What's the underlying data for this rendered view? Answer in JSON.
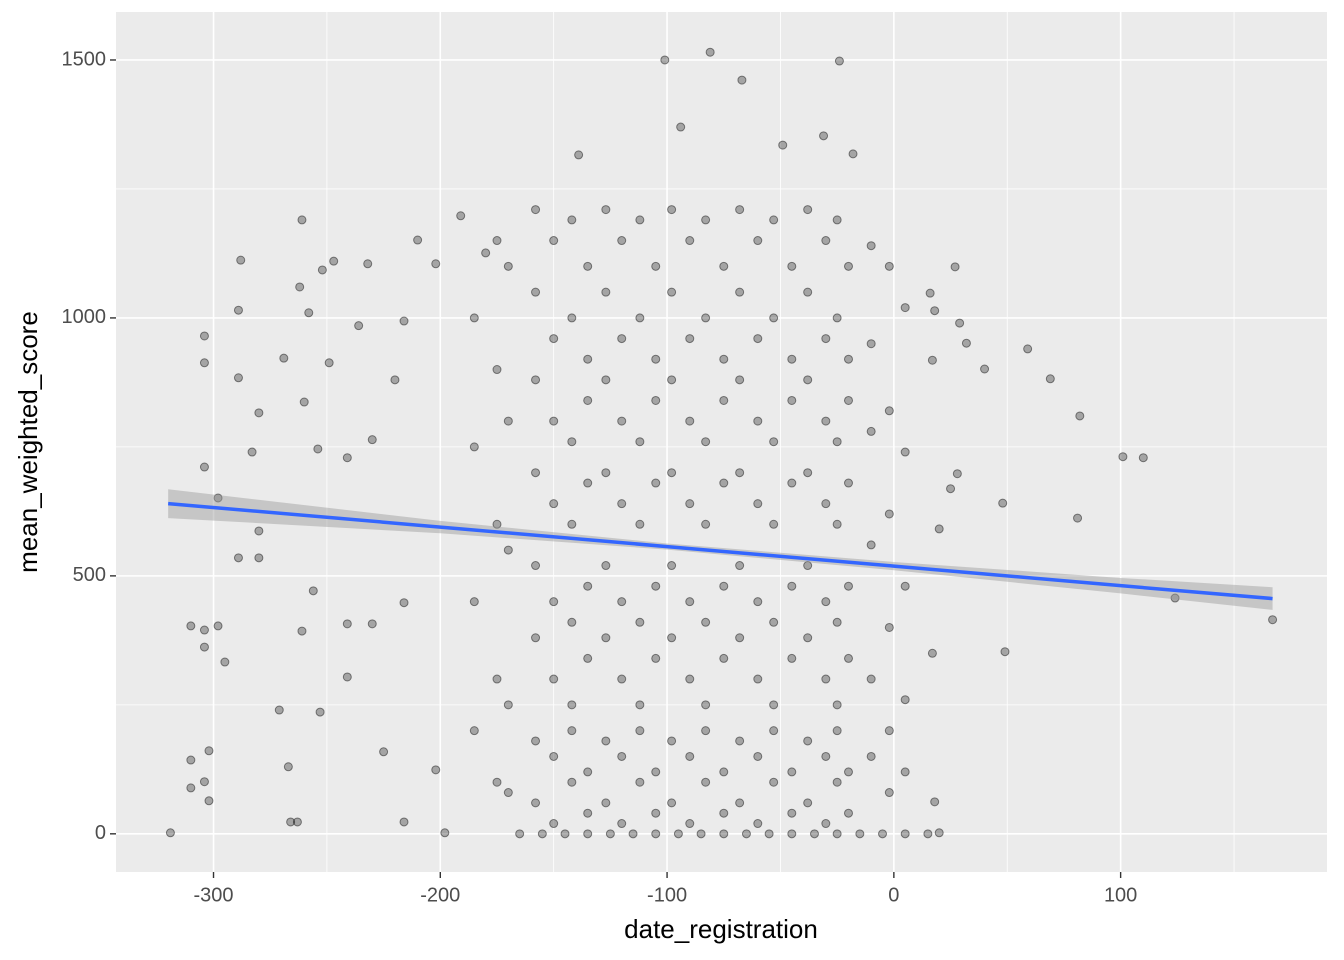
{
  "chart_data": {
    "type": "scatter",
    "xlabel": "date_registration",
    "ylabel": "mean_weighted_score",
    "xlim": [
      -343,
      191
    ],
    "ylim": [
      -74,
      1593
    ],
    "xticks": [
      -300,
      -200,
      -100,
      0,
      100
    ],
    "yticks": [
      0,
      500,
      1000,
      1500
    ],
    "xminorticks": [
      -250,
      -150,
      -50,
      50,
      150
    ],
    "yminorticks": [
      250,
      750,
      1250
    ],
    "grid": true,
    "color": "#000000",
    "x": [
      -319,
      -101,
      -81,
      -67,
      -24,
      -94,
      -31,
      -139,
      -49,
      -18,
      -288,
      -261,
      -304,
      -304,
      -289,
      -289,
      -304,
      -298,
      -310,
      -304,
      -298,
      -304,
      -295,
      -302,
      -310,
      -304,
      -302,
      -310,
      -289,
      -280,
      -280,
      -280,
      -283,
      -271,
      -267,
      -266,
      -263,
      -262,
      -258,
      -252,
      -247,
      -232,
      -269,
      -260,
      -254,
      -249,
      -236,
      -241,
      -241,
      -241,
      -256,
      -253,
      -261,
      -216,
      -210,
      -202,
      -191,
      -180,
      -230,
      -230,
      -225,
      -216,
      -202,
      -216,
      -198,
      -220,
      16,
      27,
      18,
      32,
      29,
      40,
      59,
      69,
      82,
      81,
      101,
      110,
      49,
      48,
      124,
      167,
      28,
      25,
      17,
      20,
      17,
      18,
      20,
      -165,
      -155,
      -145,
      -135,
      -125,
      -115,
      -105,
      -95,
      -85,
      -75,
      -65,
      -55,
      -45,
      -35,
      -25,
      -15,
      -5,
      5,
      15,
      -158,
      -158,
      -158,
      -158,
      -158,
      -158,
      -158,
      -158,
      -150,
      -150,
      -150,
      -150,
      -150,
      -150,
      -150,
      -150,
      -142,
      -142,
      -142,
      -142,
      -142,
      -142,
      -142,
      -142,
      -135,
      -135,
      -135,
      -135,
      -135,
      -135,
      -135,
      -135,
      -127,
      -127,
      -127,
      -127,
      -127,
      -127,
      -127,
      -127,
      -120,
      -120,
      -120,
      -120,
      -120,
      -120,
      -120,
      -120,
      -112,
      -112,
      -112,
      -112,
      -112,
      -112,
      -112,
      -112,
      -105,
      -105,
      -105,
      -105,
      -105,
      -105,
      -105,
      -105,
      -98,
      -98,
      -98,
      -98,
      -98,
      -98,
      -98,
      -98,
      -90,
      -90,
      -90,
      -90,
      -90,
      -90,
      -90,
      -90,
      -83,
      -83,
      -83,
      -83,
      -83,
      -83,
      -83,
      -83,
      -75,
      -75,
      -75,
      -75,
      -75,
      -75,
      -75,
      -75,
      -68,
      -68,
      -68,
      -68,
      -68,
      -68,
      -68,
      -68,
      -60,
      -60,
      -60,
      -60,
      -60,
      -60,
      -60,
      -60,
      -53,
      -53,
      -53,
      -53,
      -53,
      -53,
      -53,
      -53,
      -45,
      -45,
      -45,
      -45,
      -45,
      -45,
      -45,
      -45,
      -38,
      -38,
      -38,
      -38,
      -38,
      -38,
      -38,
      -38,
      -30,
      -30,
      -30,
      -30,
      -30,
      -30,
      -30,
      -30,
      -25,
      -25,
      -25,
      -25,
      -25,
      -25,
      -25,
      -25,
      -20,
      -20,
      -20,
      -20,
      -20,
      -20,
      -20,
      -20,
      -10,
      -10,
      -10,
      -10,
      -10,
      -10,
      -2,
      -2,
      -2,
      -2,
      -2,
      -2,
      5,
      5,
      5,
      5,
      5,
      -170,
      -170,
      -170,
      -170,
      -170,
      -185,
      -185,
      -185,
      -185,
      -175,
      -175,
      -175,
      -175,
      -175
    ],
    "values": [
      2,
      1500,
      1515,
      1461,
      1498,
      1370,
      1353,
      1316,
      1335,
      1318,
      1112,
      1190,
      965,
      913,
      1015,
      884,
      711,
      651,
      403,
      395,
      403,
      362,
      333,
      161,
      143,
      101,
      64,
      89,
      535,
      535,
      587,
      816,
      740,
      240,
      130,
      23,
      23,
      1060,
      1010,
      1093,
      1110,
      1105,
      922,
      837,
      746,
      913,
      985,
      729,
      407,
      304,
      471,
      236,
      393,
      994,
      1151,
      1105,
      1198,
      1126,
      764,
      407,
      159,
      448,
      124,
      23,
      2,
      880,
      1048,
      1099,
      1014,
      951,
      990,
      901,
      940,
      882,
      810,
      612,
      731,
      729,
      353,
      641,
      457,
      415,
      698,
      669,
      918,
      591,
      350,
      62,
      2,
      0,
      0,
      0,
      0,
      0,
      0,
      0,
      0,
      0,
      0,
      0,
      0,
      0,
      0,
      0,
      0,
      0,
      0,
      0,
      1210,
      1050,
      880,
      700,
      520,
      380,
      180,
      60,
      1150,
      960,
      800,
      640,
      450,
      300,
      150,
      20,
      1190,
      1000,
      760,
      600,
      410,
      250,
      200,
      100,
      1100,
      920,
      840,
      680,
      480,
      340,
      120,
      40,
      1210,
      1050,
      880,
      700,
      520,
      380,
      180,
      60,
      1150,
      960,
      800,
      640,
      450,
      300,
      150,
      20,
      1190,
      1000,
      760,
      600,
      410,
      250,
      200,
      100,
      1100,
      920,
      840,
      680,
      480,
      340,
      120,
      40,
      1210,
      1050,
      880,
      700,
      520,
      380,
      180,
      60,
      1150,
      960,
      800,
      640,
      450,
      300,
      150,
      20,
      1190,
      1000,
      760,
      600,
      410,
      250,
      200,
      100,
      1100,
      920,
      840,
      680,
      480,
      340,
      120,
      40,
      1210,
      1050,
      880,
      700,
      520,
      380,
      180,
      60,
      1150,
      960,
      800,
      640,
      450,
      300,
      150,
      20,
      1190,
      1000,
      760,
      600,
      410,
      250,
      200,
      100,
      1100,
      920,
      840,
      680,
      480,
      340,
      120,
      40,
      1210,
      1050,
      880,
      700,
      520,
      380,
      180,
      60,
      1150,
      960,
      800,
      640,
      450,
      300,
      150,
      20,
      1190,
      1000,
      760,
      600,
      410,
      250,
      200,
      100,
      1100,
      920,
      840,
      680,
      480,
      340,
      120,
      40,
      1140,
      950,
      780,
      560,
      300,
      150,
      1100,
      820,
      620,
      400,
      200,
      80,
      1020,
      740,
      480,
      260,
      120,
      1100,
      800,
      550,
      250,
      80,
      1000,
      750,
      450,
      200,
      1150,
      900,
      600,
      300,
      100
    ],
    "fit": {
      "color": "#3366ff",
      "band_color": "#999999",
      "x": [
        -320,
        -200,
        -100,
        0,
        100,
        167
      ],
      "y": [
        640,
        594.6,
        556.8,
        519,
        481,
        456
      ],
      "lower": [
        612,
        582.6,
        550.8,
        511,
        466,
        434
      ],
      "upper": [
        668,
        606.6,
        562.8,
        527,
        496,
        478
      ]
    }
  }
}
